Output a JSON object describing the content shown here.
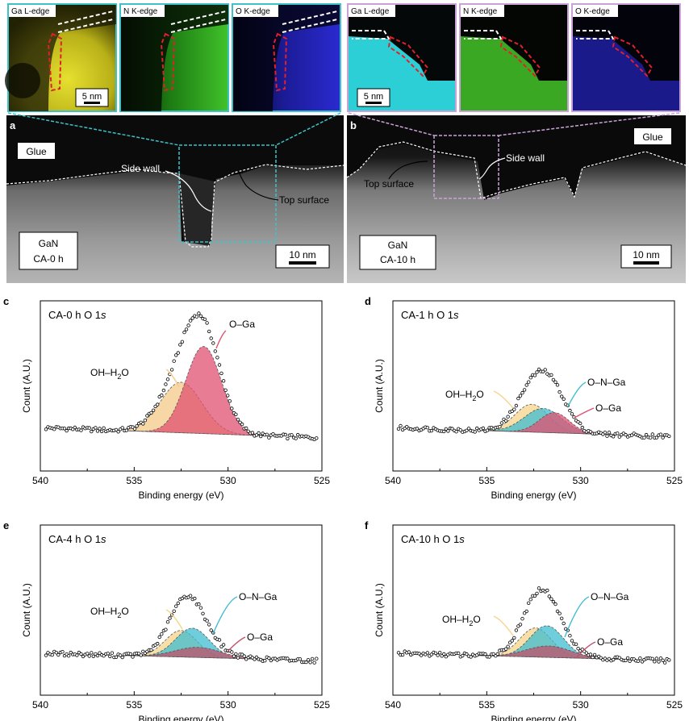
{
  "tem": {
    "edges": [
      "Ga L-edge",
      "N K-edge",
      "O K-edge"
    ],
    "scale_small": "5 nm",
    "scale_large": "10 nm",
    "panel_a": {
      "label": "a",
      "glue": "Glue",
      "side_wall": "Side wall",
      "top_surface": "Top surface",
      "sample_line1": "GaN",
      "sample_line2": "CA-0 h"
    },
    "panel_b": {
      "label": "b",
      "glue": "Glue",
      "side_wall": "Side wall",
      "top_surface": "Top surface",
      "sample_line1": "GaN",
      "sample_line2": "CA-10 h"
    },
    "colors": {
      "ga_a": "#d8d020",
      "n": "#3cbf28",
      "o": "#2a2ad0",
      "ga_b": "#30e0e8",
      "frame_a": "#3ec1c8",
      "frame_b": "#c9a3d6"
    }
  },
  "chart_data": [
    {
      "type": "line",
      "panel": "c",
      "title": "CA-0 h O 1s",
      "xlabel": "Binding energy (eV)",
      "ylabel": "Count (A.U.)",
      "xlim": [
        540,
        525
      ],
      "xticks": [
        540,
        535,
        530,
        525
      ],
      "baseline_left": 1.0,
      "baseline_right": 0.2,
      "series": [
        {
          "name": "OH–H2O",
          "center": 532.5,
          "height": 4.0,
          "width": 1.1,
          "color": "#f5c98a"
        },
        {
          "name": "O–Ga",
          "center": 531.3,
          "height": 6.9,
          "width": 0.95,
          "color": "#e05070"
        }
      ]
    },
    {
      "type": "line",
      "panel": "d",
      "title": "CA-1 h O 1s",
      "xlabel": "Binding energy (eV)",
      "ylabel": "Count (A.U.)",
      "xlim": [
        540,
        525
      ],
      "xticks": [
        540,
        535,
        530,
        525
      ],
      "baseline_left": 1.0,
      "baseline_right": 0.3,
      "series": [
        {
          "name": "OH–H2O",
          "center": 532.6,
          "height": 2.2,
          "width": 0.9,
          "color": "#f5d48a"
        },
        {
          "name": "O–N–Ga",
          "center": 532.0,
          "height": 1.9,
          "width": 1.0,
          "color": "#40bcd0"
        },
        {
          "name": "O–Ga",
          "center": 531.4,
          "height": 1.6,
          "width": 0.8,
          "color": "#e05070"
        }
      ]
    },
    {
      "type": "line",
      "panel": "e",
      "title": "CA-4 h O 1s",
      "xlabel": "Binding energy (eV)",
      "ylabel": "Count (A.U.)",
      "xlim": [
        540,
        525
      ],
      "xticks": [
        540,
        535,
        530,
        525
      ],
      "baseline_left": 0.9,
      "baseline_right": 0.3,
      "series": [
        {
          "name": "OH–H2O",
          "center": 532.5,
          "height": 2.1,
          "width": 0.85,
          "color": "#f5d48a"
        },
        {
          "name": "O–N–Ga",
          "center": 531.9,
          "height": 2.3,
          "width": 0.9,
          "color": "#40bcd0"
        },
        {
          "name": "O–Ga",
          "center": 531.6,
          "height": 0.8,
          "width": 1.2,
          "color": "#c05068"
        }
      ]
    },
    {
      "type": "line",
      "panel": "f",
      "title": "CA-10 h O 1s",
      "xlabel": "Binding energy (eV)",
      "ylabel": "Count (A.U.)",
      "xlim": [
        540,
        525
      ],
      "xticks": [
        540,
        535,
        530,
        525
      ],
      "baseline_left": 0.9,
      "baseline_right": 0.3,
      "series": [
        {
          "name": "OH–H2O",
          "center": 532.4,
          "height": 2.3,
          "width": 0.85,
          "color": "#f5d48a"
        },
        {
          "name": "O–N–Ga",
          "center": 531.8,
          "height": 2.5,
          "width": 0.9,
          "color": "#40bcd0"
        },
        {
          "name": "O–Ga",
          "center": 531.7,
          "height": 0.9,
          "width": 1.2,
          "color": "#c05068"
        }
      ]
    }
  ]
}
